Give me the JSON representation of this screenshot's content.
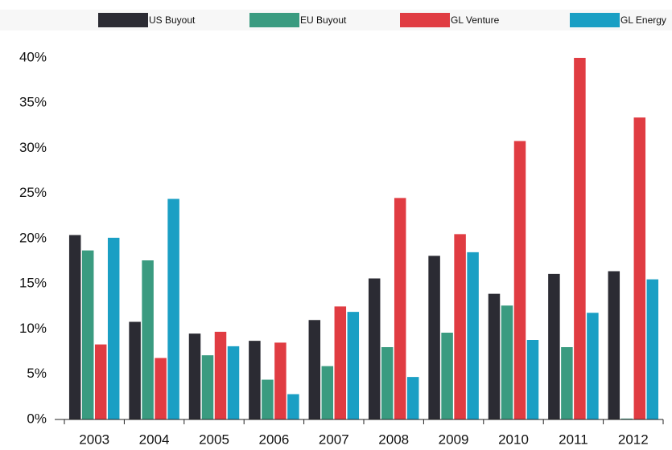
{
  "chart_data": {
    "type": "bar",
    "categories": [
      "2003",
      "2004",
      "2005",
      "2006",
      "2007",
      "2008",
      "2009",
      "2010",
      "2011",
      "2012"
    ],
    "series": [
      {
        "name": "US Buyout",
        "color": "#2b2b33",
        "values": [
          20.4,
          10.8,
          9.5,
          8.7,
          11.0,
          15.6,
          18.1,
          13.9,
          16.1,
          16.4
        ]
      },
      {
        "name": "EU Buyout",
        "color": "#3a9b80",
        "values": [
          18.7,
          17.6,
          7.1,
          4.4,
          5.9,
          8.0,
          9.6,
          12.6,
          8.0,
          0.1
        ]
      },
      {
        "name": "GL Venture",
        "color": "#e03c42",
        "values": [
          8.3,
          6.8,
          9.7,
          8.5,
          12.5,
          24.5,
          20.5,
          30.8,
          40.0,
          33.4
        ]
      },
      {
        "name": "GL Energy",
        "color": "#1a9fc4",
        "values": [
          20.1,
          24.4,
          8.1,
          2.8,
          11.9,
          4.7,
          18.5,
          8.8,
          11.8,
          15.5
        ]
      }
    ],
    "ylim": [
      0,
      40
    ],
    "yticks": [
      {
        "value": 0,
        "label": "0%"
      },
      {
        "value": 5,
        "label": "5%"
      },
      {
        "value": 10,
        "label": "10%"
      },
      {
        "value": 15,
        "label": "15%"
      },
      {
        "value": 20,
        "label": "20%"
      },
      {
        "value": 25,
        "label": "25%"
      },
      {
        "value": 30,
        "label": "30%"
      },
      {
        "value": 35,
        "label": "35%"
      },
      {
        "value": 40,
        "label": "40%"
      }
    ],
    "grid": false,
    "legend": "top"
  }
}
